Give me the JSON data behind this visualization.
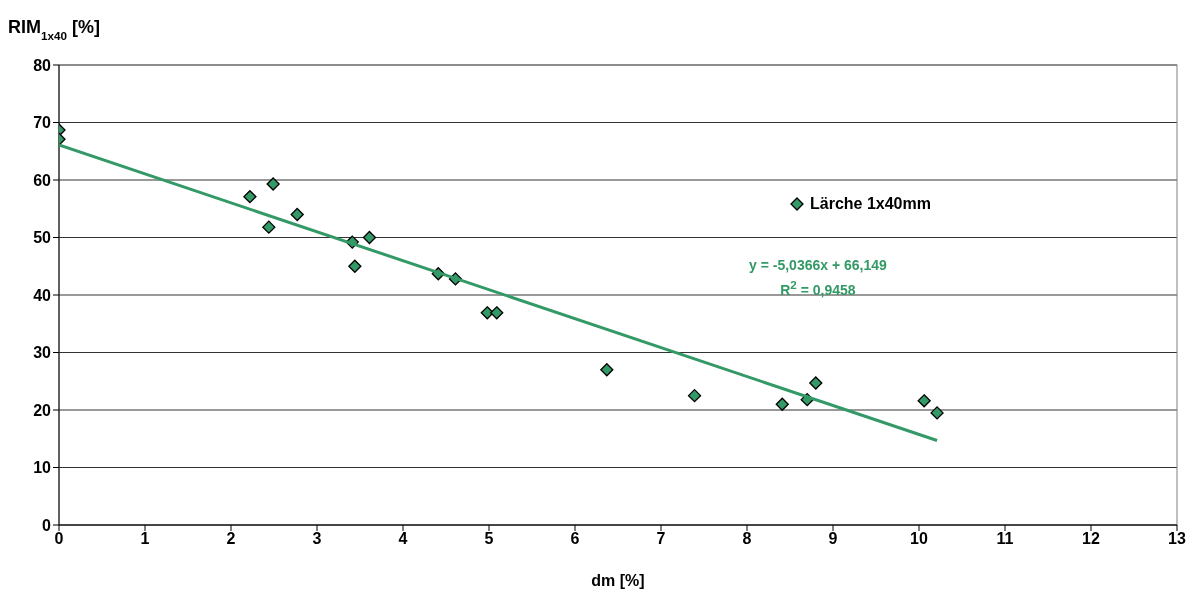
{
  "chart_data": {
    "type": "scatter",
    "ylabel": "RIM$_{1x40}$ [%]",
    "xlabel": "dm [%]",
    "xlim": [
      0,
      13
    ],
    "xticks": [
      0,
      1,
      2,
      3,
      4,
      5,
      6,
      7,
      8,
      9,
      10,
      11,
      12,
      13
    ],
    "ylim": [
      0,
      80
    ],
    "yticks": [
      0,
      10,
      20,
      30,
      40,
      50,
      60,
      70,
      80
    ],
    "grid": "y",
    "legend": "right",
    "series": [
      {
        "name": "Lärche 1x40mm",
        "marker": "diamond",
        "color": "#339966",
        "x": [
          0,
          0,
          2.22,
          2.49,
          2.44,
          2.77,
          3.41,
          3.44,
          3.61,
          4.41,
          4.61,
          4.98,
          5.09,
          6.37,
          7.39,
          8.41,
          8.7,
          8.8,
          10.06,
          10.21
        ],
        "values": [
          68.7,
          67.1,
          57.1,
          59.3,
          51.8,
          54.0,
          49.2,
          45.0,
          50.0,
          43.7,
          42.8,
          36.9,
          36.9,
          27.0,
          22.5,
          21.0,
          21.8,
          24.7,
          21.6,
          19.5
        ]
      },
      {
        "type": "line",
        "marker": "none",
        "color": "#339966",
        "x": [
          0,
          10.21
        ],
        "values": [
          66.1,
          14.7
        ]
      }
    ],
    "annotations": [
      "y = -5,0366x + 66,149",
      "R$^{2}$ = 0,9458"
    ]
  }
}
